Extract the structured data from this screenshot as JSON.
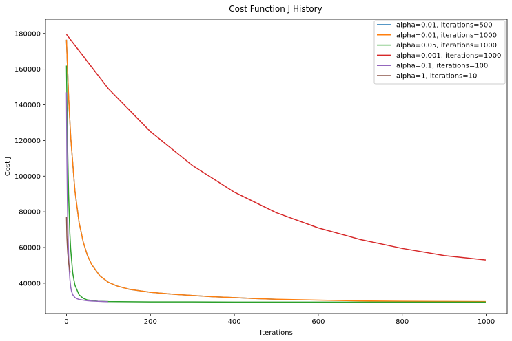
{
  "chart_data": {
    "type": "line",
    "title": "Cost Function J History",
    "xlabel": "Iterations",
    "ylabel": "Cost J",
    "xlim": [
      -50,
      1050
    ],
    "ylim": [
      23000,
      188000
    ],
    "xticks": [
      0,
      200,
      400,
      600,
      800,
      1000
    ],
    "yticks": [
      40000,
      60000,
      80000,
      100000,
      120000,
      140000,
      160000,
      180000
    ],
    "grid": false,
    "legend_position": "top-right",
    "series": [
      {
        "name": "alpha=0.01, iterations=500",
        "color": "#1f77b4",
        "x": [
          0,
          5,
          10,
          20,
          30,
          40,
          50,
          60,
          80,
          100,
          120,
          150,
          200,
          250,
          300,
          350,
          400,
          450,
          499
        ],
        "y": [
          176500,
          145000,
          122000,
          92000,
          74000,
          63000,
          55500,
          50500,
          44000,
          40500,
          38500,
          36600,
          34900,
          33900,
          33100,
          32400,
          31900,
          31400,
          31000
        ]
      },
      {
        "name": "alpha=0.01, iterations=1000",
        "color": "#ff7f0e",
        "x": [
          0,
          5,
          10,
          20,
          30,
          40,
          50,
          60,
          80,
          100,
          120,
          150,
          200,
          250,
          300,
          350,
          400,
          450,
          500,
          600,
          700,
          800,
          900,
          999
        ],
        "y": [
          176500,
          145000,
          122000,
          92000,
          74000,
          63000,
          55500,
          50500,
          44000,
          40500,
          38500,
          36600,
          34900,
          33900,
          33100,
          32400,
          31900,
          31400,
          31000,
          30500,
          30100,
          29900,
          29800,
          29700
        ]
      },
      {
        "name": "alpha=0.05, iterations=1000",
        "color": "#2ca02c",
        "x": [
          0,
          2,
          5,
          8,
          10,
          15,
          20,
          30,
          40,
          50,
          75,
          100,
          150,
          200,
          300,
          400,
          600,
          800,
          999
        ],
        "y": [
          162000,
          125000,
          90000,
          68000,
          59000,
          45500,
          39000,
          33500,
          31500,
          30600,
          29900,
          29700,
          29600,
          29500,
          29500,
          29400,
          29400,
          29400,
          29400
        ]
      },
      {
        "name": "alpha=0.001, iterations=1000",
        "color": "#d62728",
        "x": [
          0,
          100,
          200,
          300,
          400,
          500,
          600,
          700,
          800,
          900,
          999
        ],
        "y": [
          179500,
          149000,
          125000,
          106000,
          91000,
          79500,
          71000,
          64500,
          59500,
          55500,
          53000
        ]
      },
      {
        "name": "alpha=0.1, iterations=100",
        "color": "#9467bd",
        "x": [
          0,
          1,
          2,
          3,
          4,
          5,
          6,
          8,
          10,
          12,
          15,
          20,
          25,
          30,
          40,
          50,
          60,
          70,
          80,
          90,
          99
        ],
        "y": [
          147000,
          110000,
          90000,
          75000,
          64000,
          56000,
          50000,
          42500,
          38000,
          35500,
          33500,
          32000,
          31300,
          30900,
          30500,
          30200,
          30000,
          29900,
          29800,
          29700,
          29600
        ]
      },
      {
        "name": "alpha=1, iterations=10",
        "color": "#8c564b",
        "x": [
          0,
          1,
          2,
          3,
          4,
          5,
          6,
          7,
          8,
          9
        ],
        "y": [
          77000,
          66000,
          61000,
          57000,
          54500,
          52000,
          50000,
          48500,
          47000,
          46000
        ]
      }
    ]
  }
}
